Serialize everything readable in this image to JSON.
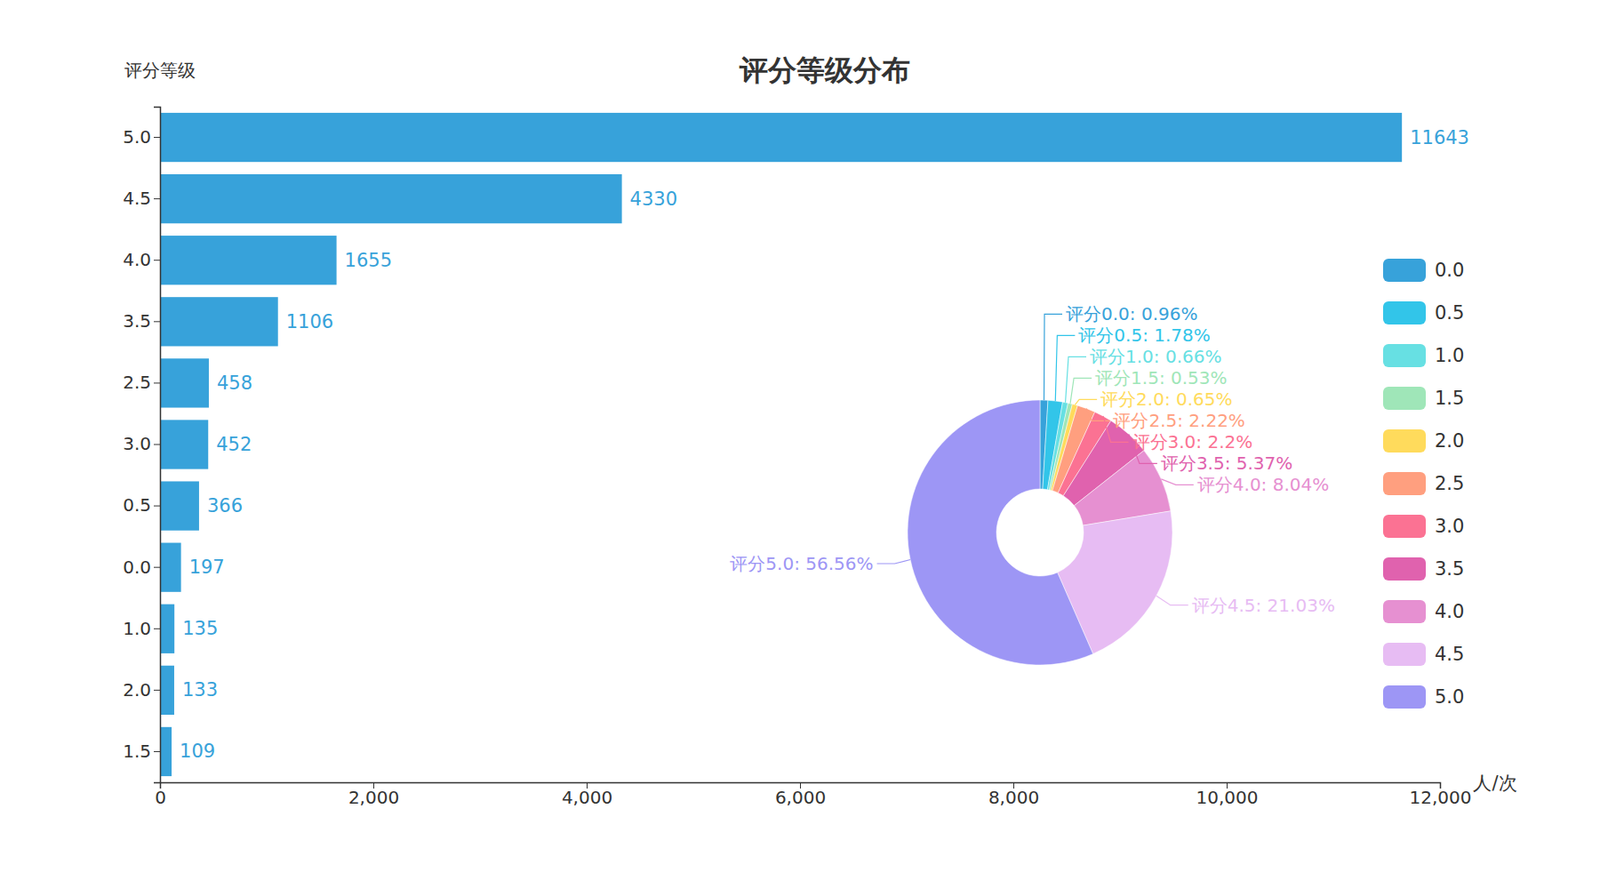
{
  "chart_data": [
    {
      "type": "bar",
      "title": "评分等级分布",
      "orientation": "horizontal",
      "x_label": "人/次",
      "y_label": "评分等级",
      "categories": [
        "5.0",
        "4.5",
        "4.0",
        "3.5",
        "2.5",
        "3.0",
        "0.5",
        "0.0",
        "1.0",
        "2.0",
        "1.5"
      ],
      "values": [
        11643,
        4330,
        1655,
        1106,
        458,
        452,
        366,
        197,
        135,
        133,
        109
      ],
      "color": "#37a2da",
      "xlim": [
        0,
        12000
      ],
      "xticks": [
        0,
        {
          "value": 2000,
          "label": "2,000"
        },
        {
          "value": 4000,
          "label": "4,000"
        },
        {
          "value": 6000,
          "label": "6,000"
        },
        {
          "value": 8000,
          "label": "8,000"
        },
        {
          "value": 10000,
          "label": "10,000"
        },
        {
          "value": 12000,
          "label": "12,000"
        }
      ],
      "grid": false,
      "data_labels": true
    },
    {
      "type": "pie",
      "categories": [
        "0.0",
        "0.5",
        "1.0",
        "1.5",
        "2.0",
        "2.5",
        "3.0",
        "3.5",
        "4.0",
        "4.5",
        "5.0"
      ],
      "values": [
        0.96,
        1.78,
        0.66,
        0.53,
        0.65,
        2.22,
        2.2,
        5.37,
        8.04,
        21.03,
        56.56
      ],
      "value_labels": [
        "评分0.0: 0.96%",
        "评分0.5: 1.78%",
        "评分1.0: 0.66%",
        "评分1.5: 0.53%",
        "评分2.0: 0.65%",
        "评分2.5: 2.22%",
        "评分3.0: 2.2%",
        "评分3.5: 5.37%",
        "评分4.0: 8.04%",
        "评分4.5: 21.03%",
        "评分5.0: 56.56%"
      ],
      "colors": [
        "#37a2da",
        "#32c5e9",
        "#67e0e3",
        "#9fe6b8",
        "#ffdb5c",
        "#ff9f7f",
        "#fb7293",
        "#e062ae",
        "#e690d1",
        "#e7bcf3",
        "#9d96f5"
      ],
      "legend": "right",
      "data_labels": true
    }
  ]
}
